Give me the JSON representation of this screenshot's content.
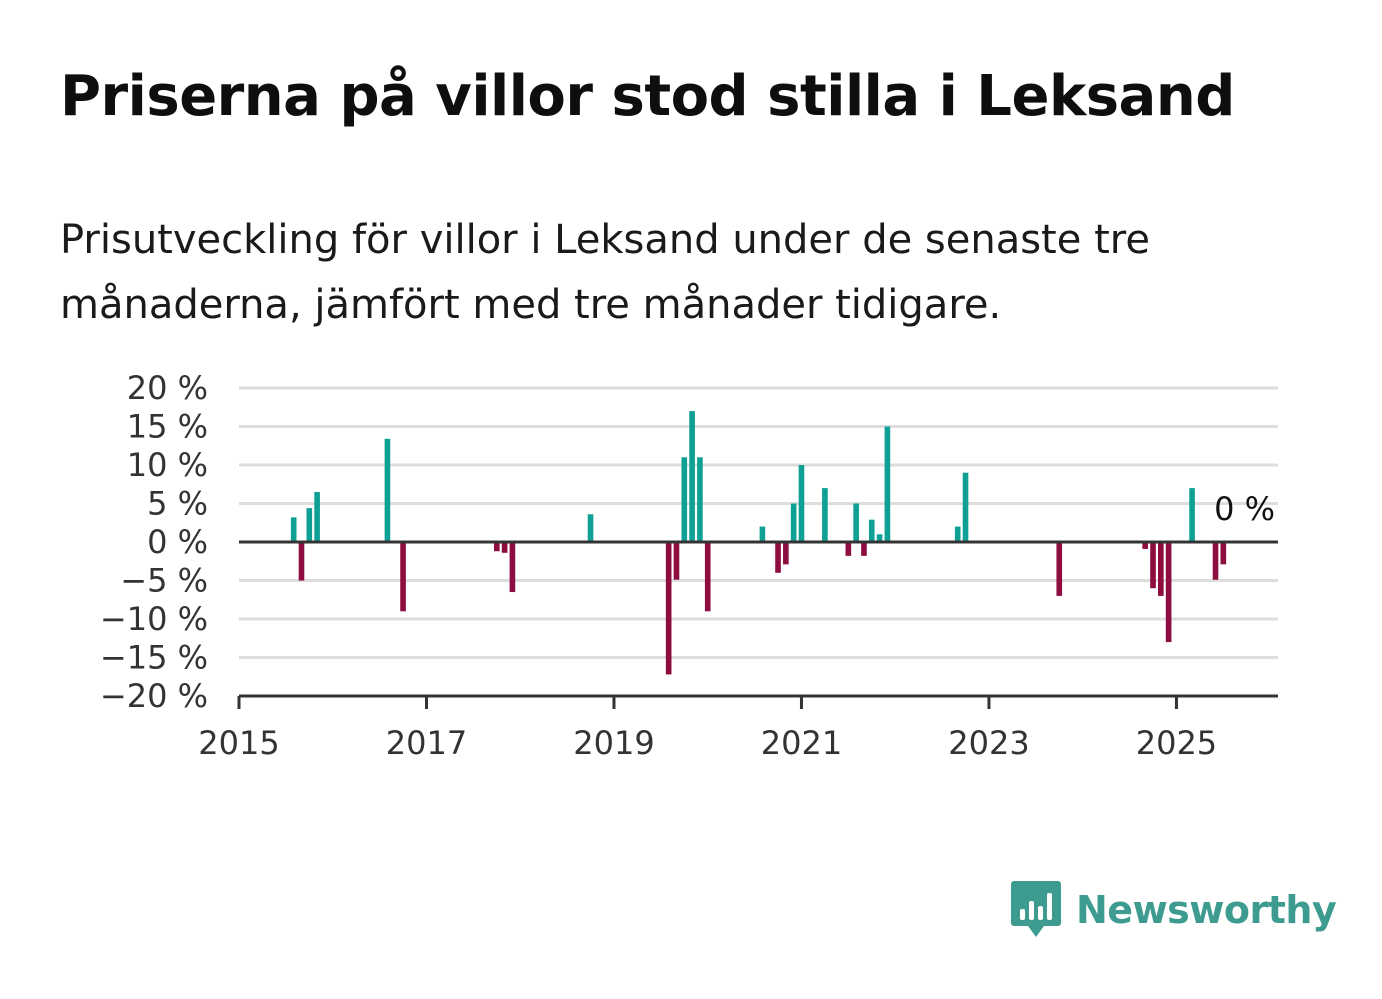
{
  "header": {
    "title": "Priserna på villor stod stilla i Leksand",
    "subtitle": "Prisutveckling för villor i Leksand under de senaste tre månaderna, jämfört med tre månader tidigare."
  },
  "brand": {
    "name": "Newsworthy",
    "icon": "newsworthy-logo-icon",
    "color": "#3d9b90"
  },
  "colors": {
    "positive": "#0fa095",
    "negative": "#8e0d41",
    "grid": "#dddddd",
    "axis": "#333333"
  },
  "chart_data": {
    "type": "bar",
    "title": "Priserna på villor stod stilla i Leksand",
    "subtitle": "Prisutveckling för villor i Leksand under de senaste tre månaderna, jämfört med tre månader tidigare.",
    "xlabel": "",
    "ylabel": "",
    "ylim": [
      -20,
      20
    ],
    "xlim": [
      "2015-01",
      "2026-02"
    ],
    "y_ticks": [
      20,
      15,
      10,
      5,
      0,
      -5,
      -10,
      -15,
      -20
    ],
    "y_tick_labels": [
      "20 %",
      "15 %",
      "10 %",
      "5 %",
      "0 %",
      "−5 %",
      "−10 %",
      "−15 %",
      "−20 %"
    ],
    "x_ticks": [
      "2015",
      "2017",
      "2019",
      "2021",
      "2023",
      "2025"
    ],
    "grid": true,
    "end_label": "0 %",
    "series": [
      {
        "values": [
          {
            "x": "2015-08",
            "y": 3.2
          },
          {
            "x": "2015-09",
            "y": -5.0
          },
          {
            "x": "2015-10",
            "y": 4.4
          },
          {
            "x": "2015-11",
            "y": 6.5
          },
          {
            "x": "2016-08",
            "y": 13.4
          },
          {
            "x": "2016-10",
            "y": -9.0
          },
          {
            "x": "2017-10",
            "y": -1.2
          },
          {
            "x": "2017-11",
            "y": -1.4
          },
          {
            "x": "2017-12",
            "y": -6.5
          },
          {
            "x": "2018-10",
            "y": 3.6
          },
          {
            "x": "2019-08",
            "y": -17.2
          },
          {
            "x": "2019-09",
            "y": -4.9
          },
          {
            "x": "2019-10",
            "y": 11.0
          },
          {
            "x": "2019-11",
            "y": 17.0
          },
          {
            "x": "2019-12",
            "y": 11.0
          },
          {
            "x": "2020-01",
            "y": -9.0
          },
          {
            "x": "2020-08",
            "y": 2.0
          },
          {
            "x": "2020-10",
            "y": -4.0
          },
          {
            "x": "2020-11",
            "y": -2.9
          },
          {
            "x": "2020-12",
            "y": 5.0
          },
          {
            "x": "2021-01",
            "y": 10.0
          },
          {
            "x": "2021-04",
            "y": 7.0
          },
          {
            "x": "2021-07",
            "y": -1.8
          },
          {
            "x": "2021-08",
            "y": 5.0
          },
          {
            "x": "2021-09",
            "y": -1.8
          },
          {
            "x": "2021-10",
            "y": 2.9
          },
          {
            "x": "2021-11",
            "y": 1.0
          },
          {
            "x": "2021-12",
            "y": 15.0
          },
          {
            "x": "2022-09",
            "y": 2.0
          },
          {
            "x": "2022-10",
            "y": 9.0
          },
          {
            "x": "2023-10",
            "y": -7.0
          },
          {
            "x": "2024-09",
            "y": -0.9
          },
          {
            "x": "2024-10",
            "y": -6.0
          },
          {
            "x": "2024-11",
            "y": -7.0
          },
          {
            "x": "2024-12",
            "y": -13.0
          },
          {
            "x": "2025-03",
            "y": 7.0
          },
          {
            "x": "2025-06",
            "y": -4.9
          },
          {
            "x": "2025-07",
            "y": -2.9
          },
          {
            "x": "2025-08",
            "y": 0.0
          }
        ]
      }
    ]
  }
}
